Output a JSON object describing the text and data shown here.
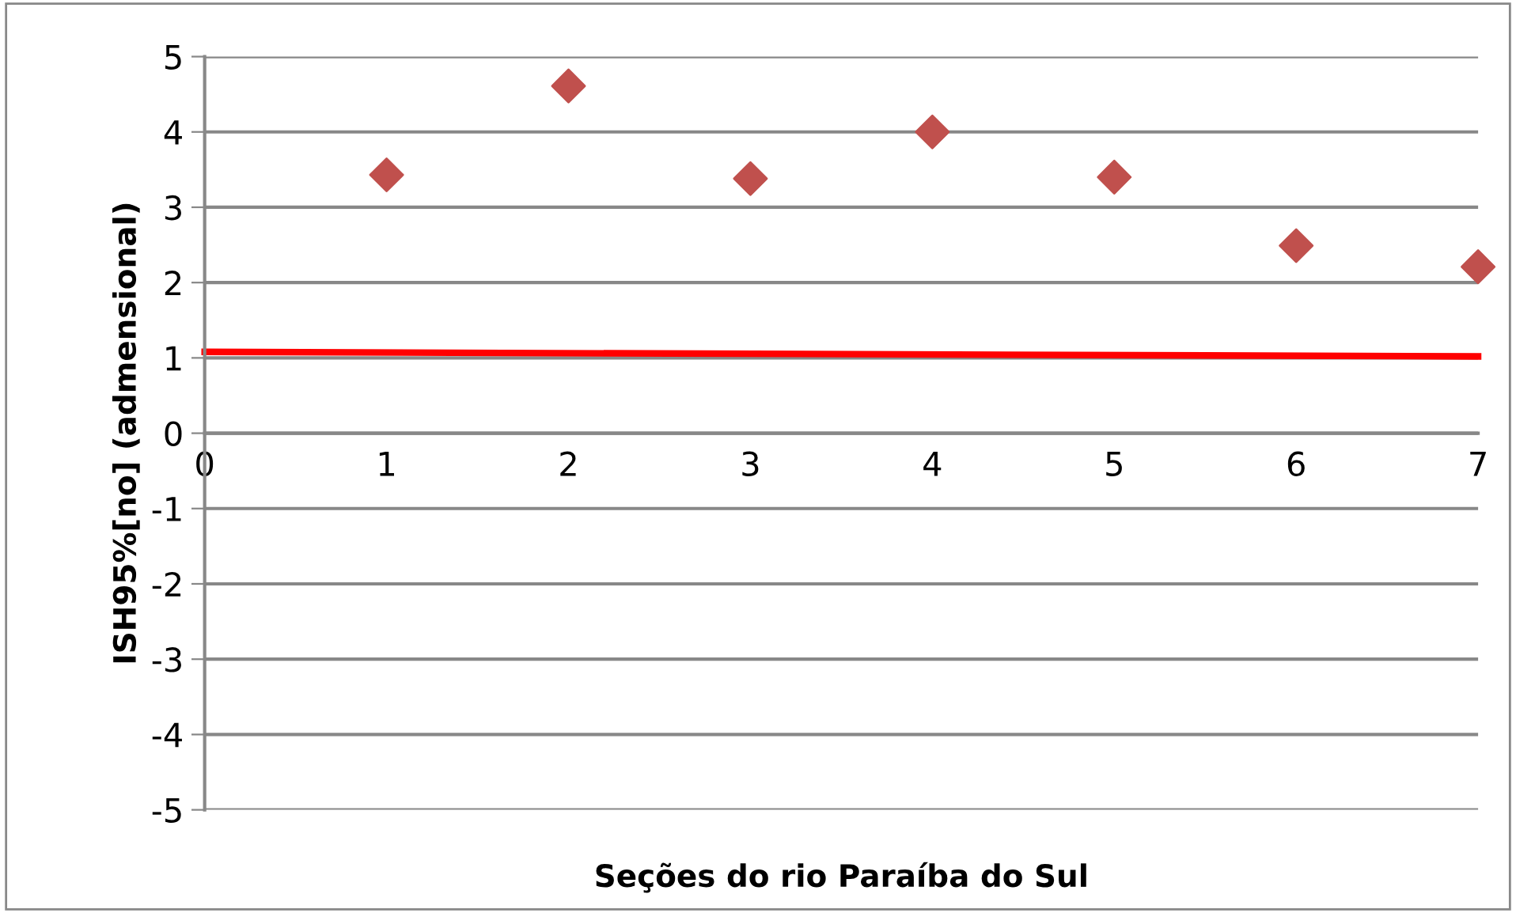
{
  "chart_data": {
    "type": "scatter",
    "xlabel": "Seções do rio Paraíba do Sul",
    "ylabel": "ISH95%[no] (admensional)",
    "xlim": [
      0,
      7
    ],
    "xticks": [
      0,
      1,
      2,
      3,
      4,
      5,
      6,
      7
    ],
    "ylim": [
      -5,
      5
    ],
    "yticks": [
      -5,
      -4,
      -3,
      -2,
      -1,
      0,
      1,
      2,
      3,
      4,
      5
    ],
    "grid": "y",
    "series": [
      {
        "x": [
          1,
          2,
          3,
          4,
          5,
          6,
          7
        ],
        "values": [
          3.43,
          4.61,
          3.38,
          4.0,
          3.4,
          2.49,
          2.21
        ],
        "color": "#c0504d",
        "marker": "diamond"
      },
      {
        "type": "line",
        "x": [
          0,
          7
        ],
        "values": [
          1.08,
          1.02
        ],
        "color": "#ff0000",
        "line_style": "solid",
        "marker": "none"
      }
    ]
  }
}
